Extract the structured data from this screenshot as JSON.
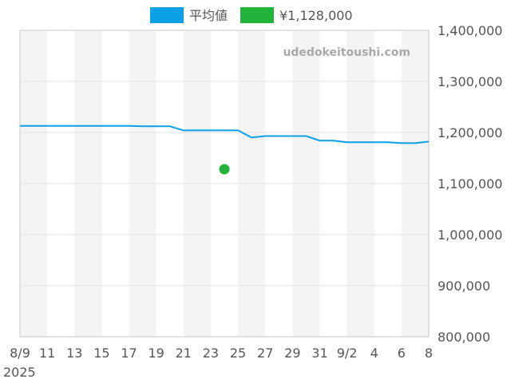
{
  "chart_data": {
    "type": "line",
    "legend": {
      "placement": "top-center",
      "items": [
        {
          "label": "平均値",
          "color": "#0aa0e6"
        },
        {
          "label": "¥1,128,000",
          "color": "#22b33a"
        }
      ]
    },
    "watermark": "udedokeitoushi.com",
    "y_axis": {
      "position": "right",
      "ylim": [
        800000,
        1400000
      ],
      "ticks": [
        1400000,
        1300000,
        1200000,
        1100000,
        1000000,
        900000,
        800000
      ],
      "tick_labels": [
        "1,400,000",
        "1,300,000",
        "1,200,000",
        "1,100,000",
        "1,000,000",
        "900,000",
        "800,000"
      ]
    },
    "x_axis": {
      "xlim": [
        "2025-08-09",
        "2025-09-08"
      ],
      "ticks": [
        "2025-08-09",
        "2025-08-11",
        "2025-08-13",
        "2025-08-15",
        "2025-08-17",
        "2025-08-19",
        "2025-08-21",
        "2025-08-23",
        "2025-08-25",
        "2025-08-27",
        "2025-08-29",
        "2025-08-31",
        "2025-09-02",
        "2025-09-04",
        "2025-09-06",
        "2025-09-08"
      ],
      "tick_labels": [
        "8/9",
        "11",
        "13",
        "15",
        "17",
        "19",
        "21",
        "23",
        "25",
        "27",
        "29",
        "31",
        "9/2",
        "4",
        "6",
        "8"
      ],
      "year_label": "2025"
    },
    "grid": true,
    "series": [
      {
        "name": "平均値",
        "type": "line",
        "color": "#0aa0e6",
        "x": [
          "2025-08-09",
          "2025-08-10",
          "2025-08-11",
          "2025-08-12",
          "2025-08-13",
          "2025-08-14",
          "2025-08-15",
          "2025-08-16",
          "2025-08-17",
          "2025-08-18",
          "2025-08-19",
          "2025-08-20",
          "2025-08-21",
          "2025-08-22",
          "2025-08-23",
          "2025-08-24",
          "2025-08-25",
          "2025-08-26",
          "2025-08-27",
          "2025-08-28",
          "2025-08-29",
          "2025-08-30",
          "2025-08-31",
          "2025-09-01",
          "2025-09-02",
          "2025-09-03",
          "2025-09-04",
          "2025-09-05",
          "2025-09-06",
          "2025-09-07",
          "2025-09-08"
        ],
        "values": [
          1213000,
          1213000,
          1213000,
          1213000,
          1213000,
          1213000,
          1213000,
          1213000,
          1213000,
          1212000,
          1212000,
          1212000,
          1204000,
          1204000,
          1204000,
          1204000,
          1204000,
          1190000,
          1193000,
          1193000,
          1193000,
          1193000,
          1184000,
          1184000,
          1181000,
          1181000,
          1181000,
          1181000,
          1179000,
          1179000,
          1182000
        ]
      },
      {
        "name": "¥1,128,000",
        "type": "scatter",
        "color": "#22b33a",
        "x": [
          "2025-08-24"
        ],
        "values": [
          1128000
        ]
      }
    ]
  }
}
